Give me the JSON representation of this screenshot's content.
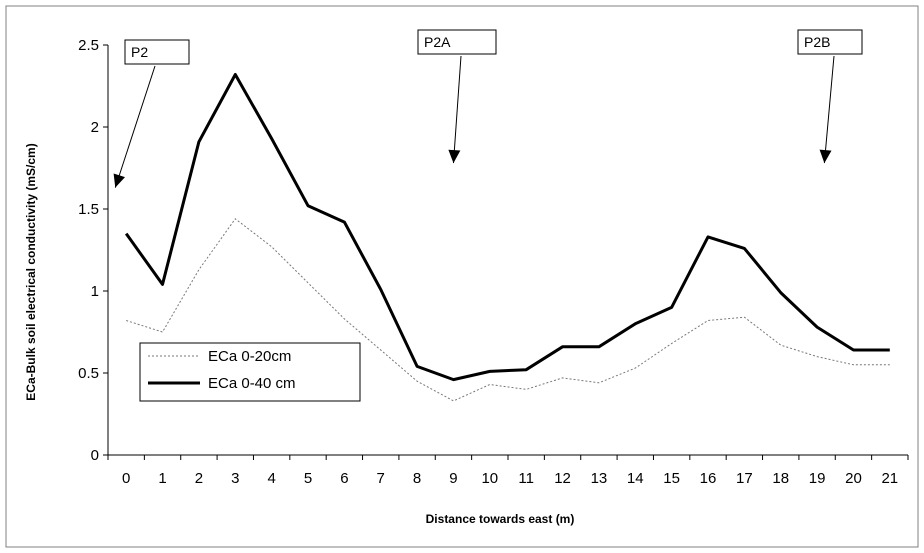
{
  "chart_data": {
    "type": "line",
    "title": "",
    "xlabel": "Distance towards east (m)",
    "ylabel": "ECa-Bulk soil electrical conductivity (mS/cm)",
    "x": [
      0,
      1,
      2,
      3,
      4,
      5,
      6,
      7,
      8,
      9,
      10,
      11,
      12,
      13,
      14,
      15,
      16,
      17,
      18,
      19,
      20,
      21
    ],
    "x_tick_labels": [
      "0",
      "1",
      "2",
      "3",
      "4",
      "5",
      "6",
      "7",
      "8",
      "9",
      "10",
      "11",
      "12",
      "13",
      "14",
      "15",
      "16",
      "17",
      "18",
      "19",
      "20",
      "21"
    ],
    "ylim": [
      0,
      2.5
    ],
    "y_ticks": [
      "0",
      "0.5",
      "1",
      "1.5",
      "2",
      "2.5"
    ],
    "grid": false,
    "legend_position": "lower-left",
    "series": [
      {
        "name": "ECa 0-20cm",
        "style": "dotted-thin",
        "color": "#777777",
        "values": [
          0.82,
          0.75,
          1.13,
          1.44,
          1.27,
          1.05,
          0.83,
          0.64,
          0.45,
          0.33,
          0.43,
          0.4,
          0.47,
          0.44,
          0.53,
          0.68,
          0.82,
          0.84,
          0.67,
          0.6,
          0.55,
          0.55
        ]
      },
      {
        "name": "ECa 0-40 cm",
        "style": "solid-thick",
        "color": "#000000",
        "values": [
          1.35,
          1.04,
          1.91,
          2.32,
          1.93,
          1.52,
          1.42,
          1.01,
          0.54,
          0.46,
          0.51,
          0.52,
          0.66,
          0.66,
          0.8,
          0.9,
          1.33,
          1.26,
          0.99,
          0.78,
          0.64,
          0.64
        ]
      }
    ],
    "annotations": [
      {
        "label": "P2",
        "target_x": -0.3,
        "target_y": 1.63
      },
      {
        "label": "P2A",
        "target_x": 9,
        "target_y": 1.78
      },
      {
        "label": "P2B",
        "target_x": 19.2,
        "target_y": 1.78
      }
    ]
  }
}
